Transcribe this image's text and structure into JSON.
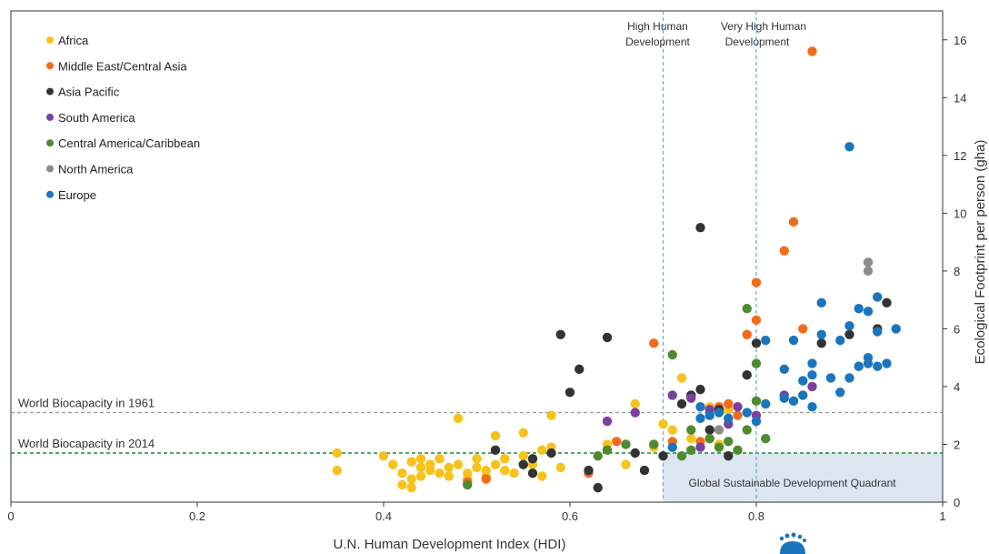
{
  "chart_data": {
    "type": "scatter",
    "title": "",
    "xlabel": "U.N. Human Development Index (HDI)",
    "ylabel": "Ecological Footprint per person (gha)",
    "xlim": [
      0,
      1
    ],
    "ylim": [
      0,
      17
    ],
    "xticks": [
      0,
      0.2,
      0.4,
      0.6,
      0.8,
      1
    ],
    "xtick_labels": [
      "0",
      "0.2",
      "0.4",
      "0.6",
      "0.8",
      "1"
    ],
    "yticks": [
      0,
      2,
      4,
      6,
      8,
      10,
      12,
      14,
      16
    ],
    "ytick_labels": [
      "0",
      "2",
      "4",
      "6",
      "8",
      "10",
      "12",
      "14",
      "16"
    ],
    "legend_position": "top-left",
    "grid": false,
    "annotations": {
      "high_hdi_label": [
        "High Human",
        "Development"
      ],
      "very_high_hdi_label": [
        "Very High Human",
        "Development"
      ],
      "biocapacity_1961_label": "World Biocapacity in 1961",
      "biocapacity_2014_label": "World Biocapacity in 2014",
      "quadrant_label": "Global Sustainable Development Quadrant"
    },
    "reference_lines": {
      "high_hdi_x": 0.7,
      "very_high_hdi_x": 0.8,
      "biocapacity_1961_y": 3.1,
      "biocapacity_2014_y": 1.7,
      "line_color": "#6ba8d0",
      "line_1961_color": "#999999",
      "line_2014_color": "#1a8a3a",
      "quadrant_fill": "#dbe6f1"
    },
    "series": [
      {
        "name": "Africa",
        "color": "#f7c21b",
        "points": [
          [
            0.35,
            1.7
          ],
          [
            0.35,
            1.1
          ],
          [
            0.4,
            1.6
          ],
          [
            0.41,
            1.3
          ],
          [
            0.42,
            1.0
          ],
          [
            0.42,
            0.6
          ],
          [
            0.43,
            0.5
          ],
          [
            0.43,
            0.8
          ],
          [
            0.43,
            1.4
          ],
          [
            0.44,
            1.5
          ],
          [
            0.44,
            1.2
          ],
          [
            0.44,
            0.9
          ],
          [
            0.45,
            1.3
          ],
          [
            0.45,
            1.1
          ],
          [
            0.46,
            1.5
          ],
          [
            0.46,
            1.0
          ],
          [
            0.47,
            0.9
          ],
          [
            0.47,
            1.2
          ],
          [
            0.48,
            2.9
          ],
          [
            0.48,
            1.3
          ],
          [
            0.49,
            0.8
          ],
          [
            0.49,
            1.0
          ],
          [
            0.5,
            1.2
          ],
          [
            0.5,
            1.5
          ],
          [
            0.51,
            1.1
          ],
          [
            0.51,
            0.9
          ],
          [
            0.52,
            1.3
          ],
          [
            0.52,
            2.3
          ],
          [
            0.53,
            1.5
          ],
          [
            0.53,
            1.1
          ],
          [
            0.54,
            1.0
          ],
          [
            0.55,
            2.4
          ],
          [
            0.55,
            1.6
          ],
          [
            0.56,
            1.3
          ],
          [
            0.57,
            1.8
          ],
          [
            0.57,
            0.9
          ],
          [
            0.58,
            1.9
          ],
          [
            0.58,
            3.0
          ],
          [
            0.59,
            1.2
          ],
          [
            0.64,
            2.0
          ],
          [
            0.66,
            1.3
          ],
          [
            0.67,
            3.4
          ],
          [
            0.69,
            1.9
          ],
          [
            0.7,
            2.7
          ],
          [
            0.71,
            2.5
          ],
          [
            0.72,
            4.3
          ],
          [
            0.73,
            2.2
          ],
          [
            0.75,
            3.3
          ],
          [
            0.76,
            2.0
          ],
          [
            0.77,
            3.2
          ]
        ]
      },
      {
        "name": "Middle East/Central Asia",
        "color": "#f26b1d",
        "points": [
          [
            0.49,
            0.7
          ],
          [
            0.51,
            0.8
          ],
          [
            0.62,
            1.0
          ],
          [
            0.64,
            1.8
          ],
          [
            0.65,
            2.1
          ],
          [
            0.69,
            5.5
          ],
          [
            0.71,
            2.1
          ],
          [
            0.74,
            2.1
          ],
          [
            0.75,
            2.2
          ],
          [
            0.76,
            3.3
          ],
          [
            0.77,
            3.4
          ],
          [
            0.78,
            3.0
          ],
          [
            0.79,
            5.8
          ],
          [
            0.8,
            6.3
          ],
          [
            0.8,
            7.6
          ],
          [
            0.83,
            8.7
          ],
          [
            0.84,
            9.7
          ],
          [
            0.85,
            6.0
          ],
          [
            0.86,
            15.6
          ],
          [
            0.91,
            4.7
          ]
        ]
      },
      {
        "name": "Asia Pacific",
        "color": "#333333",
        "points": [
          [
            0.52,
            1.8
          ],
          [
            0.55,
            1.3
          ],
          [
            0.56,
            1.0
          ],
          [
            0.56,
            1.5
          ],
          [
            0.58,
            1.7
          ],
          [
            0.59,
            5.8
          ],
          [
            0.6,
            3.8
          ],
          [
            0.61,
            4.6
          ],
          [
            0.62,
            1.1
          ],
          [
            0.63,
            0.5
          ],
          [
            0.64,
            5.7
          ],
          [
            0.67,
            1.7
          ],
          [
            0.68,
            1.1
          ],
          [
            0.7,
            1.6
          ],
          [
            0.72,
            3.4
          ],
          [
            0.73,
            3.7
          ],
          [
            0.74,
            9.5
          ],
          [
            0.74,
            3.9
          ],
          [
            0.75,
            2.5
          ],
          [
            0.76,
            3.2
          ],
          [
            0.77,
            1.6
          ],
          [
            0.79,
            4.4
          ],
          [
            0.8,
            5.5
          ],
          [
            0.87,
            5.5
          ],
          [
            0.9,
            5.8
          ],
          [
            0.93,
            6.0
          ],
          [
            0.94,
            6.9
          ]
        ]
      },
      {
        "name": "South America",
        "color": "#7b3fa0",
        "points": [
          [
            0.64,
            2.8
          ],
          [
            0.67,
            3.1
          ],
          [
            0.71,
            3.7
          ],
          [
            0.73,
            3.6
          ],
          [
            0.74,
            1.9
          ],
          [
            0.75,
            3.2
          ],
          [
            0.77,
            2.7
          ],
          [
            0.78,
            3.3
          ],
          [
            0.8,
            3.0
          ],
          [
            0.83,
            3.7
          ],
          [
            0.86,
            4.0
          ]
        ]
      },
      {
        "name": "Central America/Caribbean",
        "color": "#4f8a2f",
        "points": [
          [
            0.49,
            0.6
          ],
          [
            0.63,
            1.6
          ],
          [
            0.64,
            1.8
          ],
          [
            0.66,
            2.0
          ],
          [
            0.69,
            2.0
          ],
          [
            0.71,
            5.1
          ],
          [
            0.72,
            1.6
          ],
          [
            0.73,
            1.8
          ],
          [
            0.73,
            2.5
          ],
          [
            0.75,
            2.2
          ],
          [
            0.76,
            1.9
          ],
          [
            0.77,
            2.1
          ],
          [
            0.78,
            1.8
          ],
          [
            0.79,
            6.7
          ],
          [
            0.79,
            2.5
          ],
          [
            0.8,
            4.8
          ],
          [
            0.8,
            3.5
          ],
          [
            0.81,
            2.2
          ]
        ]
      },
      {
        "name": "North America",
        "color": "#8c8c8c",
        "points": [
          [
            0.76,
            2.5
          ],
          [
            0.92,
            8.3
          ],
          [
            0.92,
            8.0
          ]
        ]
      },
      {
        "name": "Europe",
        "color": "#1a75bc",
        "points": [
          [
            0.71,
            1.9
          ],
          [
            0.74,
            2.9
          ],
          [
            0.74,
            3.3
          ],
          [
            0.75,
            3.0
          ],
          [
            0.76,
            3.1
          ],
          [
            0.77,
            2.9
          ],
          [
            0.79,
            3.1
          ],
          [
            0.8,
            2.8
          ],
          [
            0.81,
            3.4
          ],
          [
            0.81,
            5.6
          ],
          [
            0.83,
            4.6
          ],
          [
            0.83,
            3.6
          ],
          [
            0.84,
            3.5
          ],
          [
            0.84,
            5.6
          ],
          [
            0.85,
            3.7
          ],
          [
            0.85,
            4.2
          ],
          [
            0.86,
            4.4
          ],
          [
            0.86,
            3.3
          ],
          [
            0.86,
            4.8
          ],
          [
            0.87,
            6.9
          ],
          [
            0.87,
            5.8
          ],
          [
            0.88,
            4.3
          ],
          [
            0.89,
            5.6
          ],
          [
            0.89,
            3.8
          ],
          [
            0.9,
            4.3
          ],
          [
            0.9,
            6.1
          ],
          [
            0.9,
            12.3
          ],
          [
            0.91,
            6.7
          ],
          [
            0.91,
            4.7
          ],
          [
            0.92,
            4.8
          ],
          [
            0.92,
            5.0
          ],
          [
            0.92,
            6.6
          ],
          [
            0.93,
            7.1
          ],
          [
            0.93,
            5.9
          ],
          [
            0.93,
            4.7
          ],
          [
            0.94,
            4.8
          ],
          [
            0.95,
            6.0
          ]
        ]
      }
    ]
  }
}
